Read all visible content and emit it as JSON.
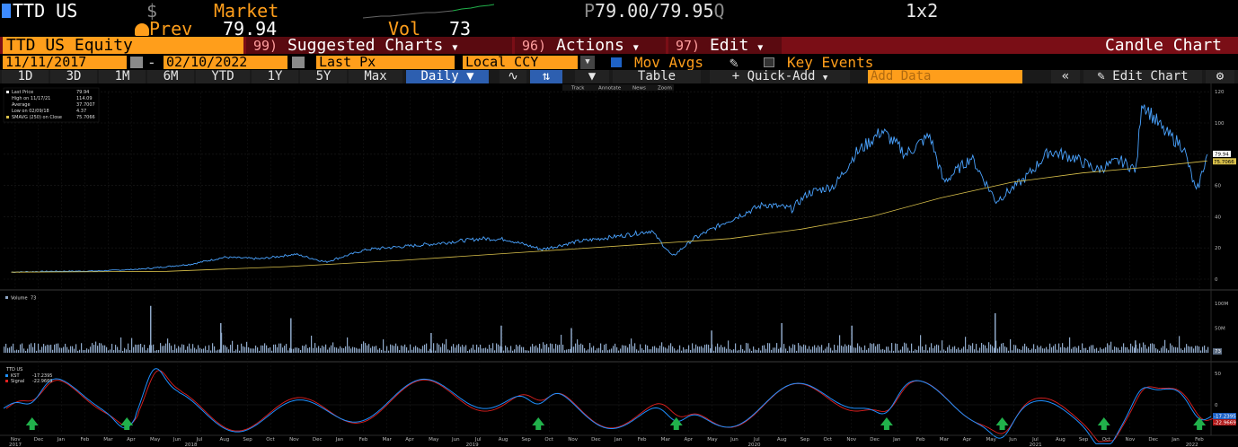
{
  "header": {
    "ticker": "TTD US",
    "currency_symbol": "$",
    "market_label": "Market",
    "quote_prefix": "P",
    "bid_ask": "79.00/79.95",
    "quote_suffix": "Q",
    "layout": "1x2",
    "prev_label": "Prev",
    "prev_value": "79.94",
    "vol_label": "Vol",
    "vol_value": "73"
  },
  "command_bar": {
    "security": "TTD US Equity",
    "menus": [
      {
        "num": "99)",
        "label": "Suggested Charts"
      },
      {
        "num": "96)",
        "label": "Actions"
      },
      {
        "num": "97)",
        "label": "Edit"
      }
    ],
    "chart_name": "Candle Chart"
  },
  "options": {
    "start_date": "11/11/2017",
    "dash": "-",
    "end_date": "02/10/2022",
    "field": "Last Px",
    "currency": "Local CCY",
    "mov_avgs_label": "Mov Avgs",
    "mov_avgs_checked": true,
    "key_events_label": "Key Events",
    "key_events_checked": false
  },
  "toolbar": {
    "ranges": [
      "1D",
      "3D",
      "1M",
      "6M",
      "YTD",
      "1Y",
      "5Y",
      "Max"
    ],
    "period": "Daily",
    "table_label": "Table",
    "quick_add_label": "Quick-Add",
    "add_data_placeholder": "Add Data",
    "edit_chart_label": "Edit Chart",
    "sub_tools": [
      "Track",
      "Annotate",
      "News",
      "Zoom"
    ]
  },
  "colors": {
    "accent": "#ff9e1b",
    "command_bar": "#7a0e16",
    "price_line": "#4aa3ff",
    "moving_average": "#d9c04a",
    "kst": "#1e90ff",
    "signal": "#e02020",
    "arrows": "#21b14b"
  },
  "chart_data": [
    {
      "type": "line",
      "panel": "price",
      "legend": [
        {
          "label": "Last Price",
          "value": "79.94"
        },
        {
          "label": "High on 11/17/21",
          "value": "114.09"
        },
        {
          "label": "Average",
          "value": "37.7007"
        },
        {
          "label": "Low on 02/09/18",
          "value": "4.37"
        },
        {
          "label": "SMAVG (250) on Close",
          "value": "75.7066"
        }
      ],
      "y_ticks": [
        "120",
        "100",
        "80",
        "60",
        "40",
        "20",
        "0"
      ],
      "ylim": [
        0,
        120
      ],
      "last_price_tag": "79.94",
      "ma_tag": "75.7066",
      "series": [
        {
          "name": "Last Price",
          "values": [
            [
              "2017-11-11",
              4.5
            ],
            [
              "2018-01-01",
              5.0
            ],
            [
              "2018-03-01",
              5.2
            ],
            [
              "2018-05-01",
              6.5
            ],
            [
              "2018-07-01",
              9.5
            ],
            [
              "2018-08-15",
              14.0
            ],
            [
              "2018-10-01",
              13.0
            ],
            [
              "2018-11-15",
              16.0
            ],
            [
              "2018-12-24",
              11.0
            ],
            [
              "2019-02-15",
              19.0
            ],
            [
              "2019-05-01",
              22.0
            ],
            [
              "2019-07-15",
              26.0
            ],
            [
              "2019-08-15",
              25.5
            ],
            [
              "2019-10-01",
              19.0
            ],
            [
              "2019-11-15",
              24.0
            ],
            [
              "2020-01-15",
              28.0
            ],
            [
              "2020-02-20",
              31.0
            ],
            [
              "2020-03-18",
              14.5
            ],
            [
              "2020-04-15",
              26.0
            ],
            [
              "2020-06-01",
              38.0
            ],
            [
              "2020-07-15",
              48.0
            ],
            [
              "2020-08-20",
              45.0
            ],
            [
              "2020-09-10",
              55.0
            ],
            [
              "2020-10-15",
              60.0
            ],
            [
              "2020-11-10",
              80.0
            ],
            [
              "2020-12-15",
              95.0
            ],
            [
              "2021-01-15",
              80.0
            ],
            [
              "2021-02-15",
              92.0
            ],
            [
              "2021-03-05",
              62.0
            ],
            [
              "2021-04-10",
              78.0
            ],
            [
              "2021-05-12",
              50.0
            ],
            [
              "2021-06-20",
              65.0
            ],
            [
              "2021-07-20",
              82.0
            ],
            [
              "2021-08-20",
              78.0
            ],
            [
              "2021-09-20",
              70.0
            ],
            [
              "2021-10-20",
              76.0
            ],
            [
              "2021-11-10",
              70.0
            ],
            [
              "2021-11-17",
              114.09
            ],
            [
              "2021-12-15",
              95.0
            ],
            [
              "2022-01-10",
              85.0
            ],
            [
              "2022-01-27",
              55.0
            ],
            [
              "2022-02-10",
              79.94
            ]
          ]
        },
        {
          "name": "SMAVG (250) on Close",
          "values": [
            [
              "2017-11-11",
              4.5
            ],
            [
              "2018-06-01",
              5.0
            ],
            [
              "2018-11-01",
              8.0
            ],
            [
              "2019-04-01",
              12.0
            ],
            [
              "2019-09-01",
              17.0
            ],
            [
              "2020-02-01",
              22.0
            ],
            [
              "2020-06-01",
              26.0
            ],
            [
              "2020-09-01",
              32.0
            ],
            [
              "2020-12-01",
              40.0
            ],
            [
              "2021-03-01",
              52.0
            ],
            [
              "2021-06-01",
              62.0
            ],
            [
              "2021-09-01",
              68.0
            ],
            [
              "2021-12-01",
              72.0
            ],
            [
              "2022-02-10",
              75.7066
            ]
          ]
        }
      ]
    },
    {
      "type": "bar",
      "panel": "volume",
      "legend": [
        {
          "label": "Volume",
          "value": "73"
        }
      ],
      "y_ticks": [
        "100M",
        "50M"
      ],
      "last_tag": "73",
      "spikes": [
        [
          "2018-05-10",
          95
        ],
        [
          "2018-08-09",
          60
        ],
        [
          "2018-11-08",
          70
        ],
        [
          "2019-05-09",
          40
        ],
        [
          "2019-08-08",
          55
        ],
        [
          "2019-11-07",
          50
        ],
        [
          "2020-05-07",
          45
        ],
        [
          "2020-08-06",
          60
        ],
        [
          "2020-11-05",
          55
        ],
        [
          "2021-05-10",
          80
        ],
        [
          "2021-11-08",
          25
        ]
      ]
    },
    {
      "type": "line",
      "panel": "kst",
      "legend": [
        {
          "label": "TTD US",
          "value": ""
        },
        {
          "label": "KST",
          "value": "-17.2395"
        },
        {
          "label": "Signal",
          "value": "-22.9669"
        }
      ],
      "y_ticks": [
        "50",
        "0"
      ],
      "kst_tag": "-17.2395",
      "signal_tag": "-22.9669",
      "buy_signals": [
        "2017-12-08",
        "2018-04-10",
        "2019-09-26",
        "2020-03-23",
        "2020-12-21",
        "2021-05-20",
        "2021-09-29",
        "2022-01-31"
      ]
    }
  ],
  "x_axis": {
    "months": [
      "Nov",
      "Dec",
      "Jan",
      "Feb",
      "Mar",
      "Apr",
      "May",
      "Jun",
      "Jul",
      "Aug",
      "Sep",
      "Oct",
      "Nov",
      "Dec",
      "Jan",
      "Feb",
      "Mar",
      "Apr",
      "May",
      "Jun",
      "Jul",
      "Aug",
      "Sep",
      "Oct",
      "Nov",
      "Dec",
      "Jan",
      "Feb",
      "Mar",
      "Apr",
      "May",
      "Jun",
      "Jul",
      "Aug",
      "Sep",
      "Oct",
      "Nov",
      "Dec",
      "Jan",
      "Feb",
      "Mar",
      "Apr",
      "May",
      "Jun",
      "Jul",
      "Aug",
      "Sep",
      "Oct",
      "Nov",
      "Dec",
      "Jan",
      "Feb"
    ],
    "years": [
      "2017",
      "2018",
      "2019",
      "2020",
      "2021",
      "2022"
    ]
  }
}
